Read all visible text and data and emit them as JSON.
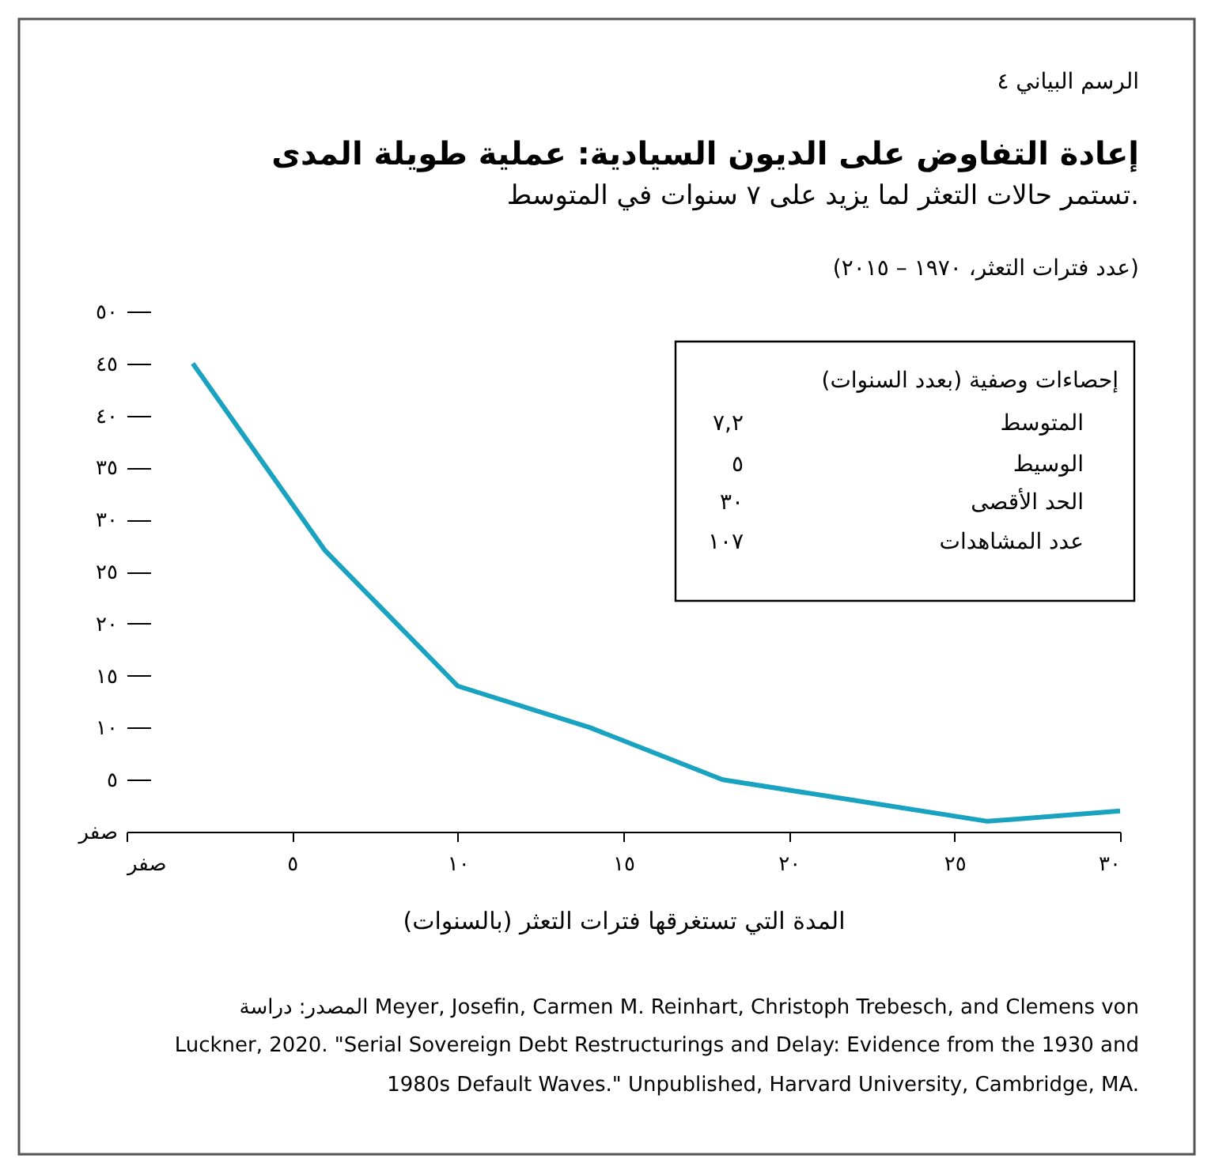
{
  "chart_data": {
    "type": "line",
    "title": "إعادة التفاوض على الديون السيادية: عملية طويلة المدى",
    "subtitle": "تستمر حالات التعثر لما يزيد على ٧ سنوات في المتوسط.",
    "ylabel": "(عدد فترات التعثر، ١٩٧٠ – ٢٠١٥)",
    "xlabel": "المدة التي تستغرقها فترات التعثر (بالسنوات)",
    "x": [
      2,
      6,
      10,
      14,
      18,
      22,
      26,
      30
    ],
    "values": [
      45,
      27,
      14,
      10,
      5,
      3,
      1,
      2
    ],
    "color": "#19a3c0",
    "xlim": [
      0,
      30
    ],
    "ylim": [
      0,
      50
    ],
    "xticks": [
      {
        "value": 0,
        "label": "صفر"
      },
      {
        "value": 5,
        "label": "٥"
      },
      {
        "value": 10,
        "label": "١٠"
      },
      {
        "value": 15,
        "label": "١٥"
      },
      {
        "value": 20,
        "label": "٢٠"
      },
      {
        "value": 25,
        "label": "٢٥"
      },
      {
        "value": 30,
        "label": "٣٠"
      }
    ],
    "yticks": [
      {
        "value": 0,
        "label": "صفر"
      },
      {
        "value": 5,
        "label": "٥"
      },
      {
        "value": 10,
        "label": "١٠"
      },
      {
        "value": 15,
        "label": "١٥"
      },
      {
        "value": 20,
        "label": "٢٠"
      },
      {
        "value": 25,
        "label": "٢٥"
      },
      {
        "value": 30,
        "label": "٣٠"
      },
      {
        "value": 35,
        "label": "٣٥"
      },
      {
        "value": 40,
        "label": "٤٠"
      },
      {
        "value": 45,
        "label": "٤٥"
      },
      {
        "value": 50,
        "label": "٥٠"
      }
    ],
    "annotations": [
      "الرسم البياني ٤",
      "إحصاءات وصفية (بعدد السنوات)",
      "المتوسط",
      "٧,٢",
      "الوسيط",
      "٥",
      "الحد الأقصى",
      "٣٠",
      "عدد المشاهدات",
      "١٠٧",
      "المصدر: دراسة Meyer, Josefin, Carmen M. Reinhart, Christoph Trebesch, and Clemens von",
      "Luckner, 2020. \"Serial Sovereign Debt Restructurings and Delay: Evidence from the 1930 and",
      "1980s Default Waves.\" Unpublished, Harvard University, Cambridge, MA."
    ]
  }
}
